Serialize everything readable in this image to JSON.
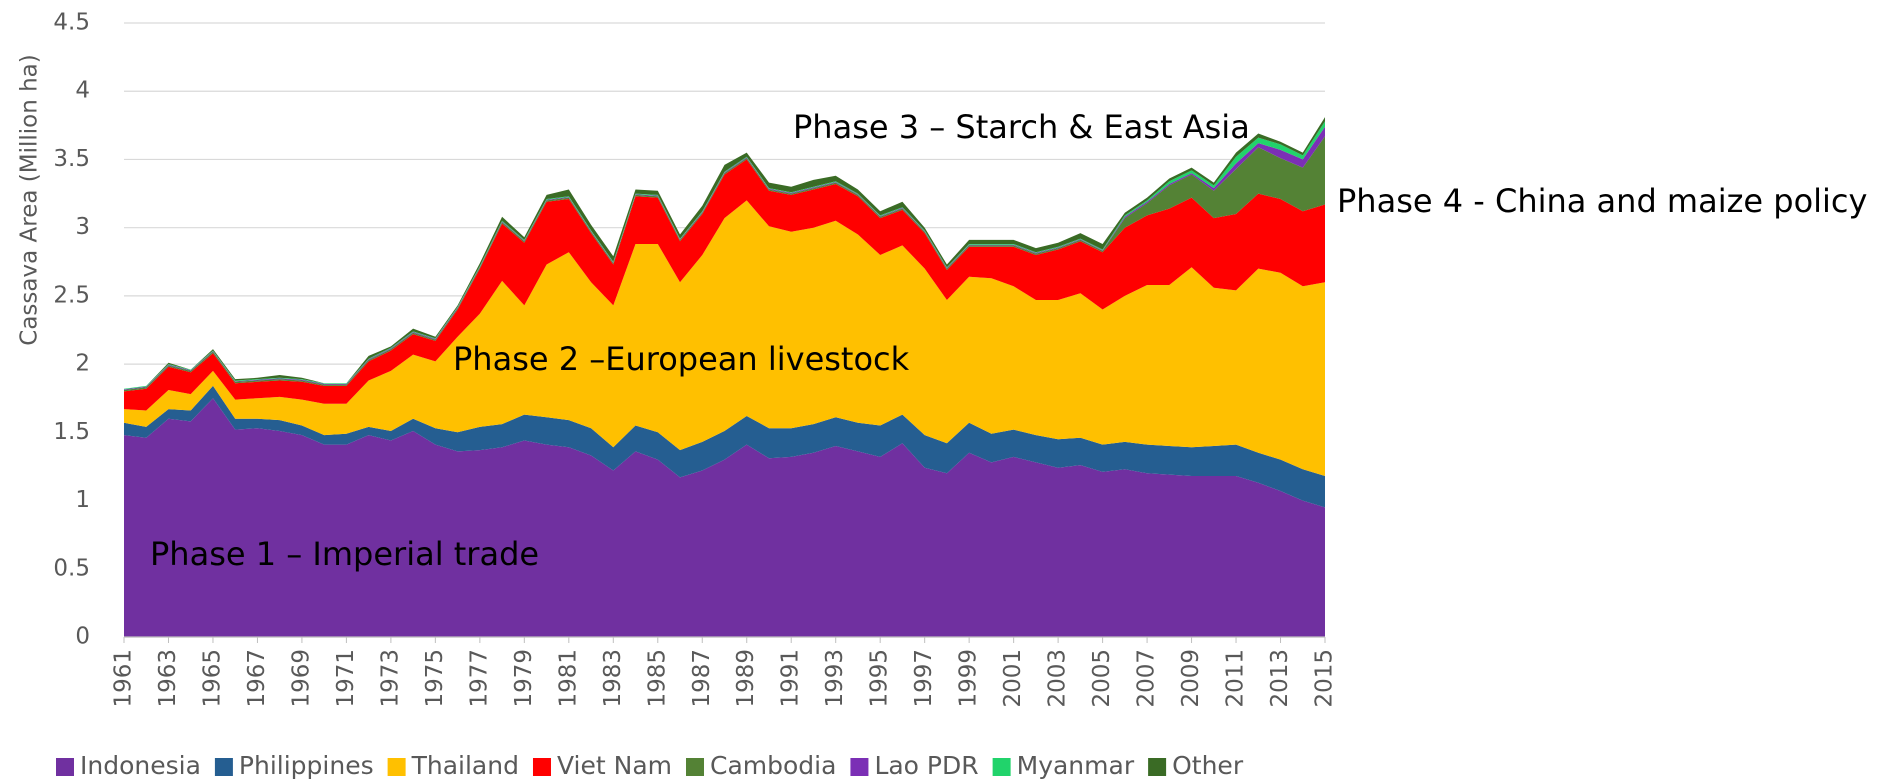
{
  "chart_data": {
    "type": "stacked_area",
    "y_axis_label": "Cassava Area (Million ha)",
    "x": [
      1961,
      1962,
      1963,
      1964,
      1965,
      1966,
      1967,
      1968,
      1969,
      1970,
      1971,
      1972,
      1973,
      1974,
      1975,
      1976,
      1977,
      1978,
      1979,
      1980,
      1981,
      1982,
      1983,
      1984,
      1985,
      1986,
      1987,
      1988,
      1989,
      1990,
      1991,
      1992,
      1993,
      1994,
      1995,
      1996,
      1997,
      1998,
      1999,
      2000,
      2001,
      2002,
      2003,
      2004,
      2005,
      2006,
      2007,
      2008,
      2009,
      2010,
      2011,
      2012,
      2013,
      2014,
      2015
    ],
    "xlim": [
      1961,
      2015
    ],
    "xticks": [
      1961,
      1963,
      1965,
      1967,
      1969,
      1971,
      1973,
      1975,
      1977,
      1979,
      1981,
      1983,
      1985,
      1987,
      1989,
      1991,
      1993,
      1995,
      1997,
      1999,
      2001,
      2003,
      2005,
      2007,
      2009,
      2011,
      2013,
      2015
    ],
    "ylim": [
      0,
      4.5
    ],
    "yticks": [
      0,
      0.5,
      1,
      1.5,
      2,
      2.5,
      3,
      3.5,
      4,
      4.5
    ],
    "grid": true,
    "legend_position": "bottom",
    "series": [
      {
        "name": "Indonesia",
        "color": "#7030a0",
        "values": [
          1.48,
          1.46,
          1.6,
          1.58,
          1.75,
          1.52,
          1.53,
          1.51,
          1.48,
          1.41,
          1.41,
          1.48,
          1.44,
          1.51,
          1.41,
          1.36,
          1.37,
          1.39,
          1.44,
          1.41,
          1.39,
          1.33,
          1.22,
          1.36,
          1.3,
          1.17,
          1.22,
          1.3,
          1.41,
          1.31,
          1.32,
          1.35,
          1.4,
          1.36,
          1.32,
          1.42,
          1.24,
          1.2,
          1.35,
          1.28,
          1.32,
          1.28,
          1.24,
          1.26,
          1.21,
          1.23,
          1.2,
          1.19,
          1.18,
          1.18,
          1.18,
          1.13,
          1.07,
          1.0,
          0.95
        ]
      },
      {
        "name": "Philippines",
        "color": "#255e91",
        "values": [
          0.09,
          0.08,
          0.07,
          0.08,
          0.09,
          0.08,
          0.07,
          0.08,
          0.07,
          0.07,
          0.08,
          0.06,
          0.07,
          0.09,
          0.12,
          0.14,
          0.17,
          0.17,
          0.19,
          0.2,
          0.2,
          0.2,
          0.17,
          0.19,
          0.2,
          0.2,
          0.21,
          0.21,
          0.21,
          0.22,
          0.21,
          0.21,
          0.21,
          0.21,
          0.23,
          0.21,
          0.24,
          0.22,
          0.22,
          0.21,
          0.2,
          0.2,
          0.21,
          0.2,
          0.2,
          0.2,
          0.21,
          0.21,
          0.21,
          0.22,
          0.23,
          0.22,
          0.23,
          0.23,
          0.23
        ]
      },
      {
        "name": "Thailand",
        "color": "#ffc000",
        "values": [
          0.1,
          0.12,
          0.14,
          0.12,
          0.11,
          0.14,
          0.15,
          0.17,
          0.19,
          0.23,
          0.22,
          0.34,
          0.44,
          0.47,
          0.49,
          0.7,
          0.83,
          1.05,
          0.8,
          1.12,
          1.23,
          1.07,
          1.04,
          1.33,
          1.38,
          1.23,
          1.37,
          1.56,
          1.58,
          1.48,
          1.44,
          1.44,
          1.44,
          1.38,
          1.25,
          1.24,
          1.22,
          1.05,
          1.07,
          1.14,
          1.05,
          0.99,
          1.02,
          1.06,
          0.99,
          1.07,
          1.17,
          1.18,
          1.32,
          1.16,
          1.13,
          1.35,
          1.37,
          1.34,
          1.42
        ]
      },
      {
        "name": "Viet Nam",
        "color": "#ff0000",
        "values": [
          0.13,
          0.16,
          0.17,
          0.16,
          0.13,
          0.12,
          0.12,
          0.12,
          0.13,
          0.13,
          0.13,
          0.14,
          0.15,
          0.15,
          0.15,
          0.2,
          0.33,
          0.42,
          0.46,
          0.46,
          0.39,
          0.36,
          0.3,
          0.35,
          0.34,
          0.3,
          0.3,
          0.32,
          0.3,
          0.26,
          0.27,
          0.28,
          0.27,
          0.28,
          0.27,
          0.26,
          0.26,
          0.22,
          0.22,
          0.23,
          0.29,
          0.33,
          0.37,
          0.38,
          0.42,
          0.5,
          0.51,
          0.56,
          0.51,
          0.51,
          0.56,
          0.55,
          0.54,
          0.55,
          0.57
        ]
      },
      {
        "name": "Cambodia",
        "color": "#548235",
        "values": [
          0.01,
          0.01,
          0.01,
          0.01,
          0.01,
          0.01,
          0.01,
          0.01,
          0.01,
          0.01,
          0.01,
          0.01,
          0.01,
          0.01,
          0.01,
          0.01,
          0.01,
          0.01,
          0.01,
          0.01,
          0.01,
          0.01,
          0.01,
          0.01,
          0.01,
          0.01,
          0.01,
          0.01,
          0.01,
          0.01,
          0.01,
          0.01,
          0.01,
          0.01,
          0.01,
          0.01,
          0.01,
          0.01,
          0.01,
          0.01,
          0.01,
          0.01,
          0.01,
          0.01,
          0.01,
          0.07,
          0.09,
          0.17,
          0.17,
          0.2,
          0.33,
          0.34,
          0.3,
          0.32,
          0.5
        ]
      },
      {
        "name": "Lao PDR",
        "color": "#7b2fb5",
        "values": [
          0.005,
          0.005,
          0.005,
          0.005,
          0.005,
          0.005,
          0.005,
          0.005,
          0.005,
          0.005,
          0.005,
          0.005,
          0.005,
          0.005,
          0.005,
          0.005,
          0.005,
          0.005,
          0.005,
          0.005,
          0.005,
          0.005,
          0.005,
          0.005,
          0.005,
          0.005,
          0.005,
          0.005,
          0.005,
          0.005,
          0.005,
          0.005,
          0.005,
          0.005,
          0.005,
          0.005,
          0.005,
          0.005,
          0.005,
          0.005,
          0.005,
          0.005,
          0.005,
          0.005,
          0.005,
          0.01,
          0.01,
          0.01,
          0.01,
          0.02,
          0.04,
          0.03,
          0.06,
          0.06,
          0.07
        ]
      },
      {
        "name": "Myanmar",
        "color": "#21d36b",
        "values": [
          0.005,
          0.005,
          0.005,
          0.005,
          0.005,
          0.005,
          0.005,
          0.005,
          0.005,
          0.005,
          0.005,
          0.005,
          0.005,
          0.005,
          0.005,
          0.005,
          0.005,
          0.005,
          0.005,
          0.005,
          0.005,
          0.005,
          0.005,
          0.005,
          0.005,
          0.005,
          0.005,
          0.005,
          0.005,
          0.005,
          0.005,
          0.005,
          0.005,
          0.005,
          0.005,
          0.005,
          0.005,
          0.005,
          0.005,
          0.005,
          0.005,
          0.005,
          0.005,
          0.005,
          0.005,
          0.01,
          0.01,
          0.02,
          0.02,
          0.02,
          0.05,
          0.04,
          0.04,
          0.03,
          0.04
        ]
      },
      {
        "name": "Other",
        "color": "#3a6b25",
        "values": [
          0,
          0,
          0.01,
          0,
          0.01,
          0.01,
          0.01,
          0.02,
          0.01,
          0,
          0,
          0.02,
          0.01,
          0.02,
          0.01,
          0.01,
          0.02,
          0.03,
          0.02,
          0.03,
          0.05,
          0.04,
          0.04,
          0.03,
          0.03,
          0.03,
          0.04,
          0.05,
          0.03,
          0.04,
          0.04,
          0.05,
          0.04,
          0.03,
          0.03,
          0.04,
          0.02,
          0.02,
          0.03,
          0.03,
          0.03,
          0.03,
          0.03,
          0.04,
          0.04,
          0.02,
          0.02,
          0.02,
          0.02,
          0.02,
          0.03,
          0.03,
          0.02,
          0.02,
          0.03
        ]
      }
    ],
    "annotations": [
      {
        "text": "Phase 1 – Imperial trade"
      },
      {
        "text": "Phase 2 –European livestock"
      },
      {
        "text": "Phase 3 – Starch & East Asia"
      },
      {
        "text": "Phase 4 - China and maize policy"
      }
    ]
  }
}
